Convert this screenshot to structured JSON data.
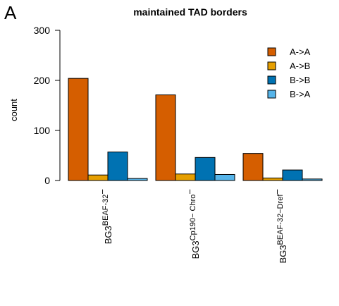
{
  "panel_label": "A",
  "chart_data": {
    "type": "bar",
    "title": "maintained TAD borders",
    "xlabel": "",
    "ylabel": "count",
    "ylim": [
      0,
      300
    ],
    "yticks": [
      0,
      100,
      200,
      300
    ],
    "grid": false,
    "legend_position": "top-right",
    "categories": [
      {
        "base": "BG3",
        "sup": "BEAF-32",
        "suffix": "−"
      },
      {
        "base": "BG3",
        "sup": "Cp190− Chro",
        "suffix": "−"
      },
      {
        "base": "BG3",
        "sup": "BEAF-32−Dref",
        "suffix": "−"
      }
    ],
    "series": [
      {
        "name": "A->A",
        "color": "#D55E00",
        "values": [
          204,
          171,
          54
        ]
      },
      {
        "name": "A->B",
        "color": "#E69F00",
        "values": [
          11,
          13,
          5
        ]
      },
      {
        "name": "B->B",
        "color": "#0072B2",
        "values": [
          57,
          46,
          21
        ]
      },
      {
        "name": "B->A",
        "color": "#56B4E9",
        "values": [
          4,
          12,
          3
        ]
      }
    ]
  }
}
